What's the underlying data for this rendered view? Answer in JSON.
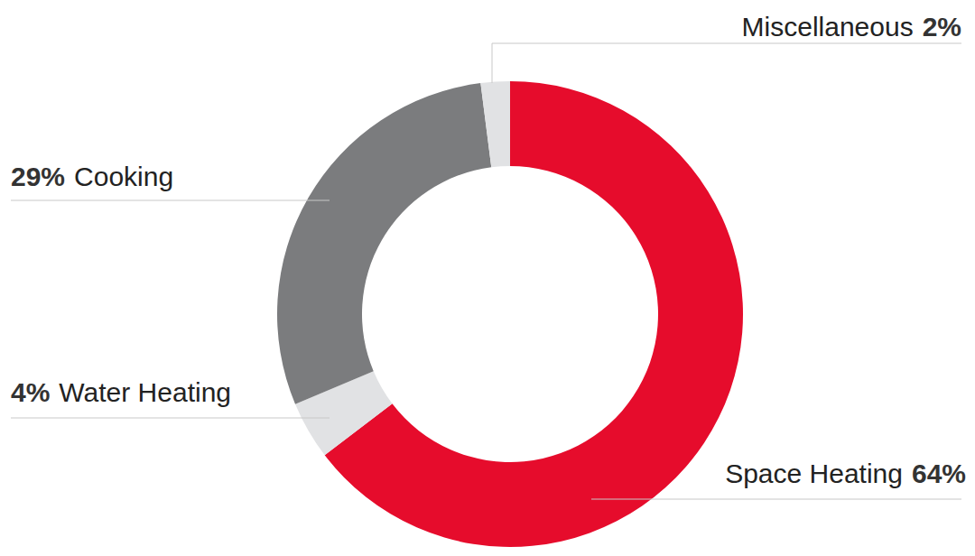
{
  "chart_data": {
    "type": "pie",
    "categories": [
      "Space Heating",
      "Water Heating",
      "Cooking",
      "Miscellaneous"
    ],
    "values": [
      64,
      4,
      29,
      2
    ],
    "value_labels": [
      "64%",
      "4%",
      "29%",
      "2%"
    ],
    "colors": [
      "#e60c2c",
      "#e1e2e4",
      "#7b7c7e",
      "#e1e2e4"
    ],
    "data_labels": true
  }
}
